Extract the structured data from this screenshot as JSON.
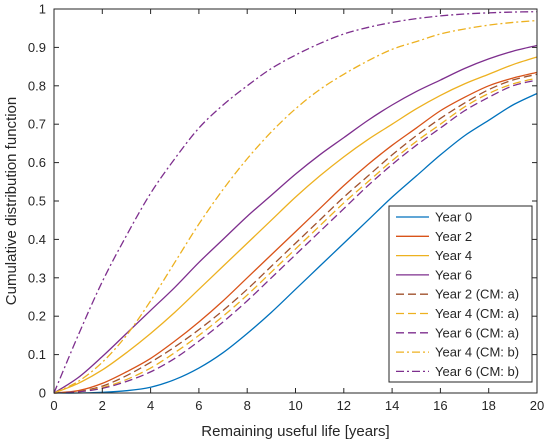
{
  "chart_data": {
    "type": "line",
    "xlabel": "Remaining useful life [years]",
    "ylabel": "Cumulative distribution function",
    "xlim": [
      0,
      20
    ],
    "ylim": [
      0,
      1
    ],
    "xticks": [
      0,
      2,
      4,
      6,
      8,
      10,
      12,
      14,
      16,
      18,
      20
    ],
    "yticks": [
      0,
      0.1,
      0.2,
      0.3,
      0.4,
      0.5,
      0.6,
      0.7,
      0.8,
      0.9,
      1
    ],
    "grid": false,
    "legend_position": "bottom-right",
    "x": [
      0,
      1,
      2,
      3,
      4,
      5,
      6,
      7,
      8,
      9,
      10,
      11,
      12,
      13,
      14,
      15,
      16,
      17,
      18,
      19,
      20
    ],
    "series": [
      {
        "name": "Year 0",
        "color": "#0072BD",
        "style": "solid",
        "values": [
          0,
          0,
          0.002,
          0.006,
          0.015,
          0.035,
          0.065,
          0.105,
          0.155,
          0.21,
          0.27,
          0.33,
          0.39,
          0.45,
          0.51,
          0.565,
          0.62,
          0.67,
          0.71,
          0.75,
          0.78
        ]
      },
      {
        "name": "Year 2",
        "color": "#D95319",
        "style": "solid",
        "values": [
          0,
          0.006,
          0.025,
          0.055,
          0.09,
          0.135,
          0.185,
          0.24,
          0.3,
          0.36,
          0.42,
          0.48,
          0.54,
          0.595,
          0.645,
          0.69,
          0.735,
          0.77,
          0.8,
          0.82,
          0.835
        ]
      },
      {
        "name": "Year 4",
        "color": "#EDB120",
        "style": "solid",
        "values": [
          0,
          0.025,
          0.06,
          0.105,
          0.155,
          0.21,
          0.27,
          0.33,
          0.39,
          0.45,
          0.51,
          0.565,
          0.615,
          0.66,
          0.7,
          0.74,
          0.775,
          0.805,
          0.83,
          0.855,
          0.875
        ]
      },
      {
        "name": "Year 6",
        "color": "#7E2F8E",
        "style": "solid",
        "values": [
          0,
          0.04,
          0.095,
          0.155,
          0.215,
          0.275,
          0.34,
          0.4,
          0.46,
          0.515,
          0.57,
          0.62,
          0.665,
          0.71,
          0.75,
          0.785,
          0.815,
          0.845,
          0.87,
          0.89,
          0.905
        ]
      },
      {
        "name": "Year 2 (CM: a)",
        "color": "#A0522D",
        "style": "dashed",
        "values": [
          0,
          0.004,
          0.018,
          0.045,
          0.08,
          0.12,
          0.165,
          0.215,
          0.27,
          0.33,
          0.39,
          0.45,
          0.51,
          0.565,
          0.62,
          0.67,
          0.715,
          0.755,
          0.79,
          0.815,
          0.83
        ]
      },
      {
        "name": "Year 4 (CM: a)",
        "color": "#EDB120",
        "style": "dashed",
        "values": [
          0,
          0.003,
          0.014,
          0.035,
          0.065,
          0.105,
          0.15,
          0.2,
          0.255,
          0.315,
          0.375,
          0.435,
          0.495,
          0.55,
          0.605,
          0.655,
          0.7,
          0.745,
          0.78,
          0.805,
          0.82
        ]
      },
      {
        "name": "Year 6 (CM: a)",
        "color": "#7E2F8E",
        "style": "dashed",
        "values": [
          0,
          0.003,
          0.012,
          0.03,
          0.055,
          0.09,
          0.135,
          0.185,
          0.24,
          0.3,
          0.36,
          0.42,
          0.48,
          0.54,
          0.595,
          0.645,
          0.69,
          0.735,
          0.77,
          0.8,
          0.815
        ]
      },
      {
        "name": "Year 4 (CM: b)",
        "color": "#EDB120",
        "style": "dashdot",
        "values": [
          0,
          0.03,
          0.08,
          0.15,
          0.24,
          0.34,
          0.44,
          0.53,
          0.61,
          0.68,
          0.74,
          0.79,
          0.83,
          0.865,
          0.895,
          0.915,
          0.935,
          0.948,
          0.958,
          0.965,
          0.97
        ]
      },
      {
        "name": "Year 6 (CM: b)",
        "color": "#7E2F8E",
        "style": "dashdot",
        "values": [
          0,
          0.15,
          0.29,
          0.41,
          0.52,
          0.61,
          0.69,
          0.75,
          0.8,
          0.845,
          0.88,
          0.91,
          0.935,
          0.952,
          0.965,
          0.975,
          0.982,
          0.987,
          0.99,
          0.992,
          0.993
        ]
      }
    ]
  }
}
